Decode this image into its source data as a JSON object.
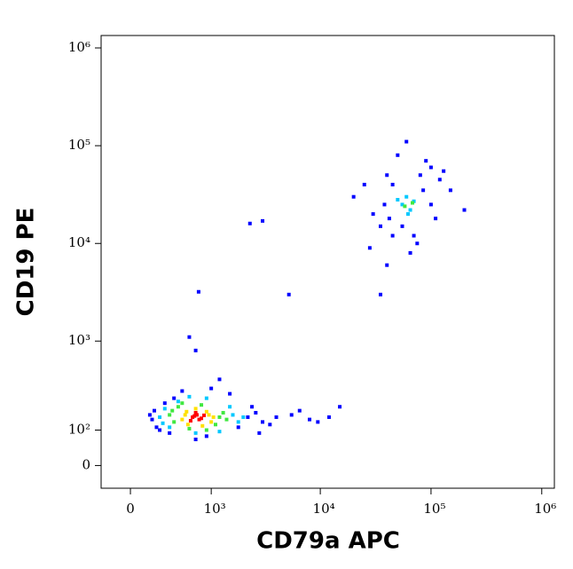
{
  "chart_data": {
    "type": "scatter",
    "x_label": "CD79a APC",
    "y_label": "CD19 PE",
    "xscale": "biexponential",
    "yscale": "biexponential",
    "xlim": [
      -250,
      1300000
    ],
    "ylim": [
      -60,
      1340000
    ],
    "xticks": [
      0,
      {
        "value": 1000,
        "label": "10³"
      },
      {
        "value": 10000,
        "label": "10⁴"
      },
      {
        "value": 100000,
        "label": "10⁵"
      },
      {
        "value": 1000000,
        "label": "10⁶"
      }
    ],
    "yticks": [
      0,
      {
        "value": 100,
        "label": "10²"
      },
      {
        "value": 1000,
        "label": "10³"
      },
      {
        "value": 10000,
        "label": "10⁴"
      },
      {
        "value": 100000,
        "label": "10⁵"
      },
      {
        "value": 1000000,
        "label": "10⁶"
      }
    ],
    "series": [
      {
        "color": "#0000ff",
        "x": [
          180,
          200,
          2200,
          2600,
          3000,
          250,
          1800,
          400,
          500,
          1000,
          1500,
          700,
          350,
          2400,
          4000,
          5500,
          8000,
          12000,
          15000,
          220,
          300,
          1200,
          900,
          700,
          3500,
          6500,
          9500,
          2800,
          160,
          600,
          2300,
          3000,
          5200,
          750,
          20000,
          25000,
          30000,
          35000,
          40000,
          45000,
          80000,
          100000,
          120000,
          150000,
          200000,
          90000,
          75000,
          35000,
          40000,
          28000,
          110000,
          130000,
          50000,
          60000,
          70000,
          45000,
          85000,
          38000,
          55000,
          100000,
          65000,
          42000
        ],
        "y": [
          140,
          180,
          150,
          170,
          130,
          100,
          110,
          250,
          300,
          320,
          280,
          800,
          90,
          200,
          150,
          160,
          140,
          150,
          200,
          110,
          220,
          400,
          80,
          70,
          120,
          180,
          130,
          90,
          160,
          1100,
          16000,
          17000,
          3000,
          3200,
          30000,
          40000,
          20000,
          15000,
          50000,
          12000,
          50000,
          60000,
          45000,
          35000,
          22000,
          70000,
          10000,
          3000,
          6000,
          9000,
          18000,
          55000,
          80000,
          110000,
          12000,
          40000,
          35000,
          25000,
          15000,
          25000,
          8000,
          18000
        ]
      },
      {
        "color": "#00c8ff",
        "x": [
          250,
          300,
          1600,
          1800,
          350,
          1500,
          700,
          900,
          280,
          2000,
          450,
          1200,
          600,
          55000,
          65000,
          60000,
          70000,
          50000,
          62000
        ],
        "y": [
          150,
          190,
          160,
          130,
          110,
          200,
          90,
          250,
          125,
          150,
          230,
          95,
          260,
          25000,
          22000,
          30000,
          27000,
          28000,
          20000
        ]
      },
      {
        "color": "#40e840",
        "x": [
          350,
          400,
          1200,
          1300,
          450,
          1100,
          600,
          800,
          380,
          1400,
          900,
          500,
          58000,
          68000
        ],
        "y": [
          160,
          130,
          150,
          170,
          200,
          120,
          105,
          210,
          180,
          140,
          100,
          220,
          24000,
          26000
        ]
      },
      {
        "color": "#ffe000",
        "x": [
          500,
          560,
          900,
          1000,
          950,
          580,
          700,
          820,
          1050,
          540
        ],
        "y": [
          140,
          175,
          175,
          130,
          160,
          120,
          190,
          115,
          150,
          160
        ]
      },
      {
        "color": "#ff0000",
        "x": [
          650,
          720,
          800,
          700,
          760,
          680,
          850,
          620
        ],
        "y": [
          150,
          160,
          145,
          170,
          140,
          155,
          158,
          135
        ]
      }
    ]
  }
}
